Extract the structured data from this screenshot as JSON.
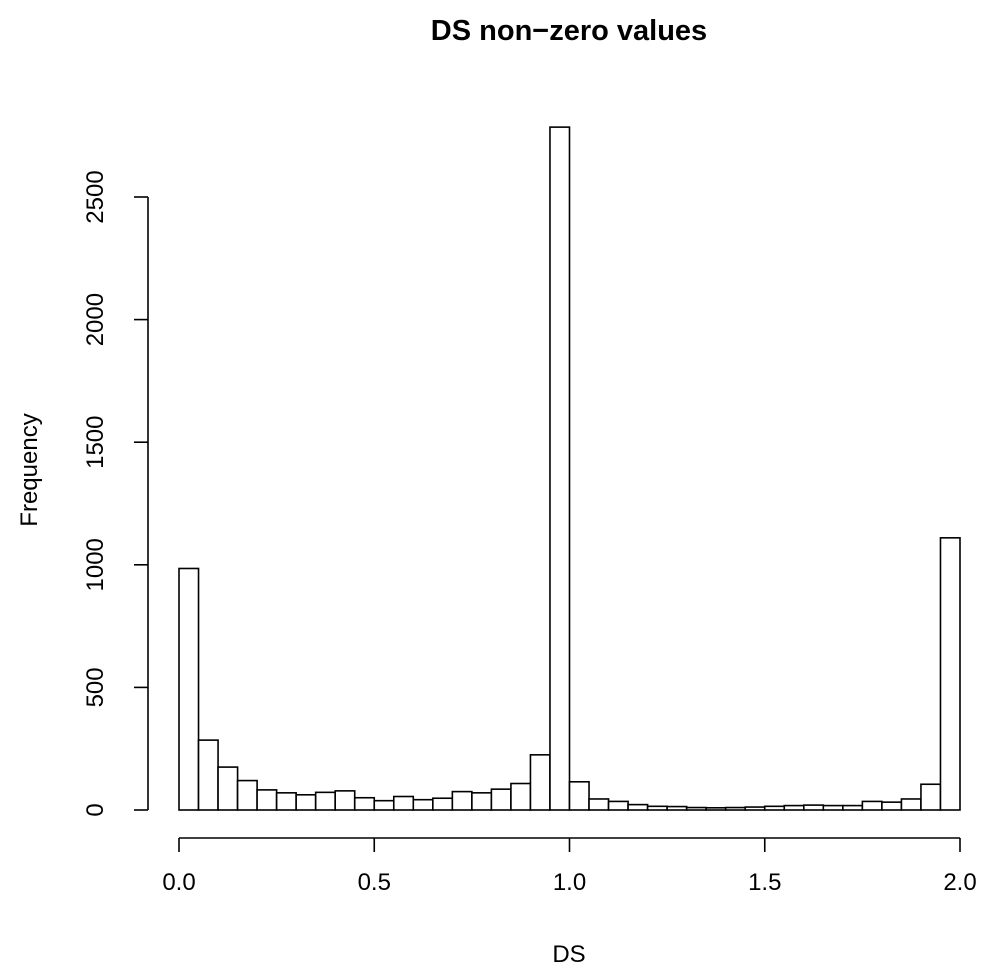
{
  "chart_data": {
    "type": "bar",
    "title": "DS non−zero values",
    "xlabel": "DS",
    "ylabel": "Frequency",
    "xlim": [
      0,
      2
    ],
    "ylim": [
      0,
      2800
    ],
    "x_ticks": [
      0,
      0.5,
      1,
      1.5,
      2
    ],
    "x_tick_labels": [
      "0.0",
      "0.5",
      "1.0",
      "1.5",
      "2.0"
    ],
    "y_ticks": [
      0,
      500,
      1000,
      1500,
      2000,
      2500
    ],
    "y_tick_labels": [
      "0",
      "500",
      "1000",
      "1500",
      "2000",
      "2500"
    ],
    "bin_width": 0.05,
    "bin_starts": [
      0,
      0.05,
      0.1,
      0.15,
      0.2,
      0.25,
      0.3,
      0.35,
      0.4,
      0.45,
      0.5,
      0.55,
      0.6,
      0.65,
      0.7,
      0.75,
      0.8,
      0.85,
      0.9,
      0.95,
      1.0,
      1.05,
      1.1,
      1.15,
      1.2,
      1.25,
      1.3,
      1.35,
      1.4,
      1.45,
      1.5,
      1.55,
      1.6,
      1.65,
      1.7,
      1.75,
      1.8,
      1.85,
      1.9,
      1.95
    ],
    "values": [
      985,
      285,
      175,
      120,
      82,
      70,
      62,
      72,
      78,
      50,
      38,
      55,
      42,
      48,
      75,
      70,
      85,
      108,
      225,
      2785,
      115,
      45,
      35,
      22,
      15,
      14,
      10,
      9,
      10,
      12,
      15,
      18,
      20,
      18,
      18,
      35,
      32,
      45,
      105,
      1110
    ],
    "grid": false,
    "legend": "none"
  }
}
